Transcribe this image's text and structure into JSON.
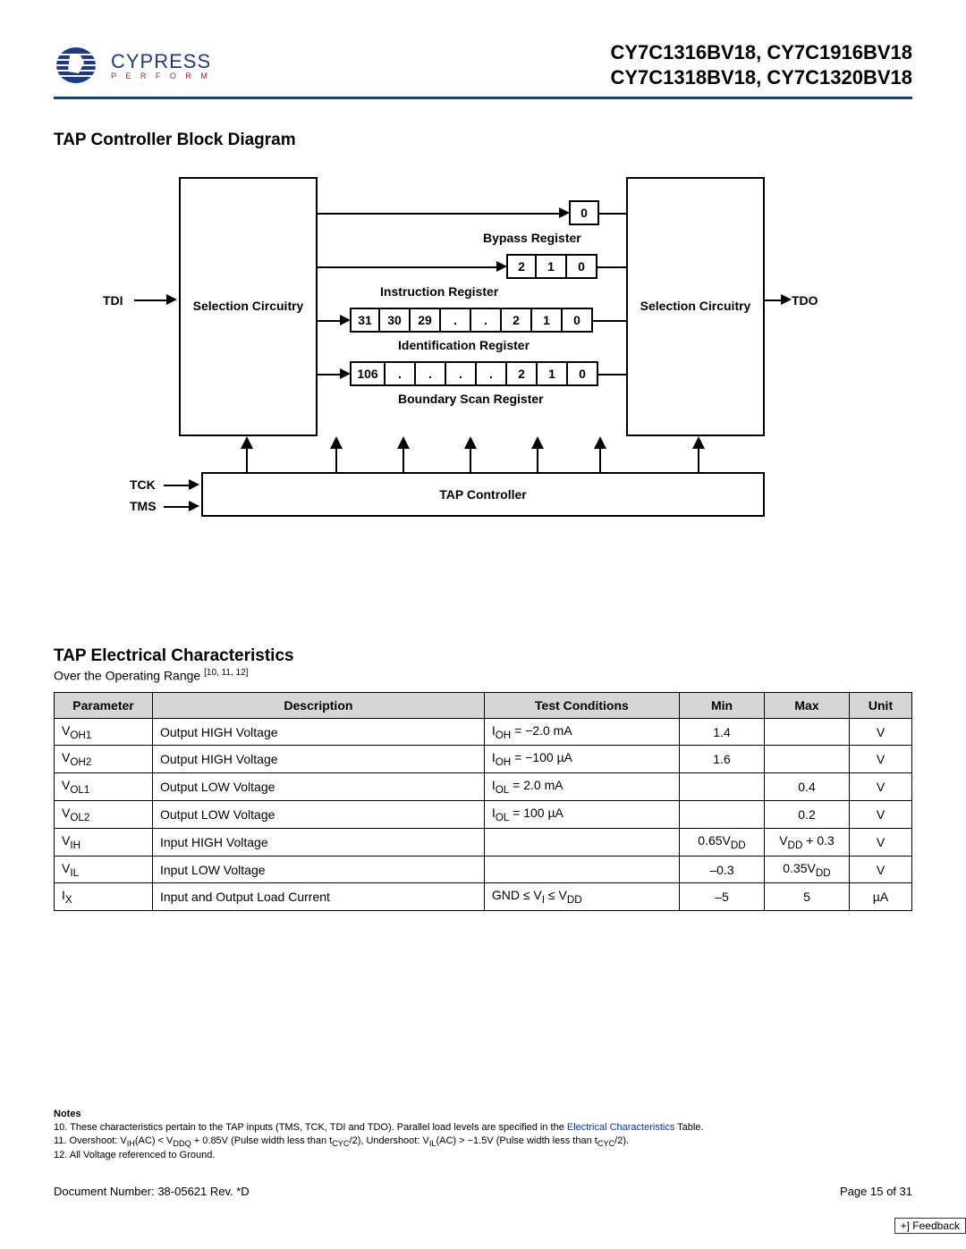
{
  "header": {
    "company": "CYPRESS",
    "tagline": "P E R F O R M",
    "products_line1": "CY7C1316BV18, CY7C1916BV18",
    "products_line2": "CY7C1318BV18, CY7C1320BV18"
  },
  "section1_title": "TAP Controller Block Diagram",
  "diagram": {
    "tdi": "TDI",
    "tdo": "TDO",
    "tck": "TCK",
    "tms": "TMS",
    "selection_circuitry": "Selection Circuitry",
    "bypass_register": "Bypass Register",
    "bypass_cells": [
      "0"
    ],
    "instruction_register": "Instruction Register",
    "instruction_cells": [
      "2",
      "1",
      "0"
    ],
    "identification_register": "Identification Register",
    "identification_cells": [
      "31",
      "30",
      "29",
      ".",
      ".",
      "2",
      "1",
      "0"
    ],
    "boundary_scan_register": "Boundary Scan Register",
    "boundary_cells": [
      "106",
      ".",
      ".",
      ".",
      ".",
      "2",
      "1",
      "0"
    ],
    "tap_controller": "TAP Controller"
  },
  "section2_title": "TAP Electrical Characteristics",
  "operating_range_text": "Over the Operating Range ",
  "operating_range_refs": "[10, 11, 12]",
  "table": {
    "columns": [
      "Parameter",
      "Description",
      "Test Conditions",
      "Min",
      "Max",
      "Unit"
    ],
    "rows": [
      {
        "param": "V<sub>OH1</sub>",
        "desc": "Output HIGH Voltage",
        "cond": "I<sub>OH</sub> = −2.0 mA",
        "min": "1.4",
        "max": "",
        "unit": "V"
      },
      {
        "param": "V<sub>OH2</sub>",
        "desc": "Output HIGH Voltage",
        "cond": "I<sub>OH</sub> = −100 µA",
        "min": "1.6",
        "max": "",
        "unit": "V"
      },
      {
        "param": "V<sub>OL1</sub>",
        "desc": "Output LOW Voltage",
        "cond": "I<sub>OL</sub> = 2.0 mA",
        "min": "",
        "max": "0.4",
        "unit": "V"
      },
      {
        "param": "V<sub>OL2</sub>",
        "desc": "Output LOW Voltage",
        "cond": "I<sub>OL</sub> = 100 µA",
        "min": "",
        "max": "0.2",
        "unit": "V"
      },
      {
        "param": "V<sub>IH</sub>",
        "desc": "Input HIGH Voltage",
        "cond": "",
        "min": "0.65V<sub>DD</sub>",
        "max": "V<sub>DD</sub> + 0.3",
        "unit": "V"
      },
      {
        "param": "V<sub>IL</sub>",
        "desc": "Input LOW Voltage",
        "cond": "",
        "min": "–0.3",
        "max": "0.35V<sub>DD</sub>",
        "unit": "V"
      },
      {
        "param": "I<sub>X</sub>",
        "desc": "Input and Output Load Current",
        "cond": "GND ≤ V<sub>I</sub> ≤ V<sub>DD</sub>",
        "min": "–5",
        "max": "5",
        "unit": "µA"
      }
    ]
  },
  "notes": {
    "heading": "Notes",
    "items": [
      "10. These characteristics pertain to the TAP inputs (TMS, TCK, TDI and TDO). Parallel load levels are specified in the <a href='#'>Electrical Characteristics</a> Table.",
      "11. Overshoot: V<sub>IH</sub>(AC) &lt; V<sub>DDQ</sub> + 0.85V (Pulse width less than t<sub>CYC</sub>/2), Undershoot: V<sub>IL</sub>(AC) &gt; −1.5V (Pulse width less than t<sub>CYC</sub>/2).",
      "12. All Voltage referenced to Ground."
    ]
  },
  "footer": {
    "doc": "Document Number: 38-05621 Rev. *D",
    "page": "Page 15 of 31",
    "feedback": "+] Feedback"
  },
  "style": {
    "header_rule_color": "#1a3a8a",
    "table_header_bg": "#d6d6d6"
  }
}
